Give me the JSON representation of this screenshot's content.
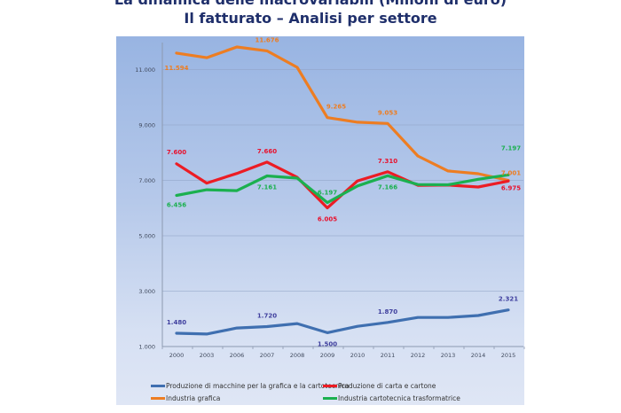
{
  "header": {
    "title_line1": "La dinamica delle macrovariabili (Milioni di euro)",
    "title_line2": "Il fatturato – Analisi per settore"
  },
  "chart_data": {
    "type": "line",
    "title": "Il fatturato – Analisi per settore",
    "xlabel": "",
    "ylabel": "",
    "ylim": [
      1000,
      12000
    ],
    "yticks": [
      1000,
      3000,
      5000,
      7000,
      9000,
      11000
    ],
    "ytick_labels": [
      "1.000",
      "3.000",
      "5.000",
      "7.000",
      "9.000",
      "11.000"
    ],
    "grid": true,
    "legend_position": "bottom",
    "categories": [
      "2000",
      "2003",
      "2006",
      "2007",
      "2008",
      "2009",
      "2010",
      "2011",
      "2012",
      "2013",
      "2014",
      "2015"
    ],
    "series": [
      {
        "name": "Produzione di macchine per la grafica e la cartotecnica",
        "color": "#3f6fb0",
        "values": [
          1480,
          1450,
          1670,
          1720,
          1830,
          1500,
          1730,
          1870,
          2050,
          2050,
          2120,
          2321
        ],
        "labels": [
          {
            "index": 0,
            "text": "1.480",
            "pos": "above"
          },
          {
            "index": 3,
            "text": "1.720",
            "pos": "above"
          },
          {
            "index": 5,
            "text": "1.500",
            "pos": "below"
          },
          {
            "index": 7,
            "text": "1.870",
            "pos": "above"
          },
          {
            "index": 11,
            "text": "2.321",
            "pos": "above"
          }
        ]
      },
      {
        "name": "Produzione di carta e cartone",
        "color": "#ec1c24",
        "values": [
          7600,
          6900,
          7250,
          7660,
          7110,
          6005,
          6980,
          7310,
          6820,
          6830,
          6760,
          6975
        ],
        "labels": [
          {
            "index": 0,
            "text": "7.600",
            "pos": "above"
          },
          {
            "index": 3,
            "text": "7.660",
            "pos": "above"
          },
          {
            "index": 5,
            "text": "6.005",
            "pos": "below"
          },
          {
            "index": 7,
            "text": "7.310",
            "pos": "above"
          },
          {
            "index": 11,
            "text": "6.975",
            "pos": "below"
          }
        ]
      },
      {
        "name": "Industria grafica",
        "color": "#ed7d22",
        "values": [
          11594,
          11430,
          11816,
          11676,
          11080,
          9265,
          9100,
          9053,
          7880,
          7340,
          7240,
          7001
        ],
        "labels": [
          {
            "index": 0,
            "text": "11.594",
            "pos": "below"
          },
          {
            "index": 3,
            "text": "11.676",
            "pos": "above"
          },
          {
            "index": 5,
            "text": "9.265",
            "pos": "above"
          },
          {
            "index": 7,
            "text": "9.053",
            "pos": "above"
          },
          {
            "index": 11,
            "text": "7.001",
            "pos": "above"
          }
        ]
      },
      {
        "name": "Industria cartotecnica trasformatrice",
        "color": "#1bb04f",
        "values": [
          6456,
          6660,
          6630,
          7161,
          7080,
          6197,
          6800,
          7166,
          6850,
          6840,
          7040,
          7197
        ],
        "labels": [
          {
            "index": 0,
            "text": "6.456",
            "pos": "below"
          },
          {
            "index": 3,
            "text": "7.161",
            "pos": "below"
          },
          {
            "index": 5,
            "text": "6.197",
            "pos": "above"
          },
          {
            "index": 7,
            "text": "7.166",
            "pos": "below"
          },
          {
            "index": 11,
            "text": "7.197",
            "pos": "above"
          }
        ]
      }
    ]
  }
}
